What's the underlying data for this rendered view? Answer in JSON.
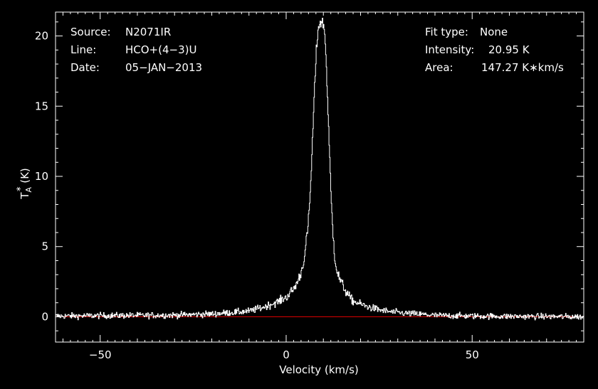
{
  "header_left": {
    "source_label": "Source:",
    "source_value": "N2071IR",
    "line_label": "Line:",
    "line_value": "HCO+(4−3)U",
    "date_label": "Date:",
    "date_value": "05−JAN−2013"
  },
  "header_right": {
    "fit_label": "Fit type:",
    "fit_value": "None",
    "intensity_label": "Intensity:",
    "intensity_value": "20.95 K",
    "area_label": "Area:",
    "area_value": "147.27 K∗km/s"
  },
  "chart_data": {
    "type": "line",
    "xlabel": "Velocity (km/s)",
    "ylabel": "T",
    "ylabel_sub": "A",
    "ylabel_sup": "*",
    "ylabel_unit": " (K)",
    "xlim": [
      -62,
      80
    ],
    "ylim": [
      -1.8,
      21.7
    ],
    "xticks": [
      {
        "value": -50,
        "label": "−50"
      },
      {
        "value": 0,
        "label": "0"
      },
      {
        "value": 50,
        "label": "50"
      }
    ],
    "yticks": [
      {
        "value": 0,
        "label": "0"
      },
      {
        "value": 5,
        "label": "5"
      },
      {
        "value": 10,
        "label": "10"
      },
      {
        "value": 15,
        "label": "15"
      },
      {
        "value": 20,
        "label": "20"
      }
    ],
    "colors": {
      "spectrum": "#ffffff",
      "baseline": "#cc0000",
      "frame": "#ffffff"
    },
    "series": [
      {
        "style": "steps",
        "x": [
          -62,
          -50,
          -40,
          -30,
          -20,
          -15,
          -10,
          -8,
          -6,
          -4,
          -2,
          0,
          1,
          2,
          3,
          4,
          5,
          6,
          6.5,
          7,
          7.5,
          8,
          8.5,
          9,
          9.5,
          9.8,
          10.1,
          10.4,
          10.8,
          11.2,
          11.6,
          12,
          12.5,
          13,
          13.5,
          14,
          15,
          16,
          17,
          18,
          20,
          22,
          25,
          28,
          32,
          36,
          40,
          50,
          60,
          70,
          80
        ],
        "y": [
          0.05,
          0.08,
          0.1,
          0.12,
          0.2,
          0.3,
          0.4,
          0.55,
          0.7,
          0.9,
          1.1,
          1.4,
          1.7,
          2.0,
          2.5,
          3.2,
          4.5,
          7.0,
          9.3,
          12.5,
          15.8,
          18.7,
          20.5,
          20.95,
          20.95,
          20.9,
          20.7,
          19.8,
          17.5,
          14.5,
          11.5,
          8.5,
          6.0,
          4.3,
          3.4,
          2.9,
          2.3,
          1.8,
          1.4,
          1.1,
          0.9,
          0.7,
          0.5,
          0.35,
          0.25,
          0.18,
          0.1,
          0.05,
          0.03,
          0.02,
          0.0
        ]
      },
      {
        "style": "baseline",
        "x": [
          -62,
          80
        ],
        "y": [
          0,
          0
        ]
      }
    ]
  }
}
